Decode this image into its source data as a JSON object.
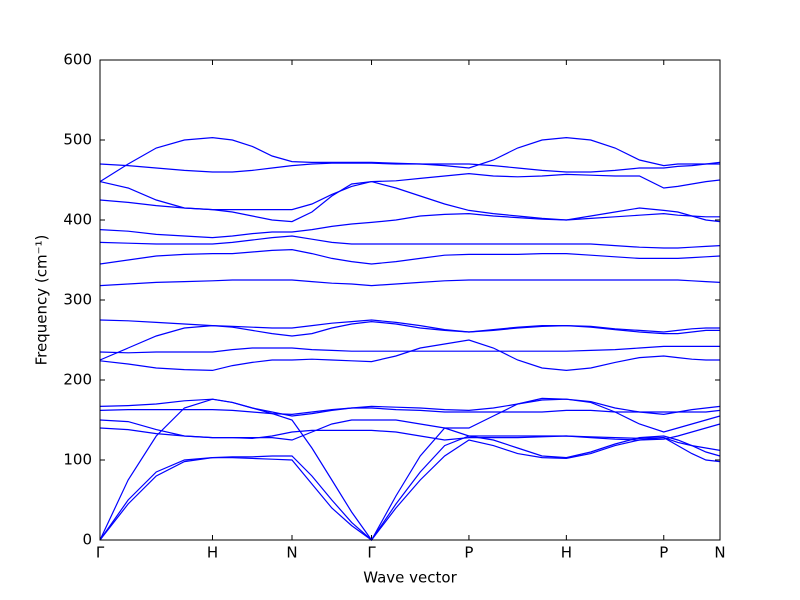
{
  "chart_data": {
    "type": "line",
    "xlabel": "Wave vector",
    "ylabel": "Frequency (cm⁻¹)",
    "x": [
      0,
      0.25,
      0.5,
      0.75,
      1,
      1.177,
      1.354,
      1.53,
      1.707,
      1.884,
      2.061,
      2.237,
      2.414,
      2.631,
      2.847,
      3.064,
      3.28,
      3.497,
      3.713,
      3.93,
      4.146,
      4.363,
      4.579,
      4.796,
      5.012,
      5.137,
      5.262,
      5.387,
      5.512
    ],
    "xlim": [
      0,
      5.512
    ],
    "xticks": [
      {
        "value": 0,
        "label": "Γ"
      },
      {
        "value": 1,
        "label": "H"
      },
      {
        "value": 1.707,
        "label": "N"
      },
      {
        "value": 2.414,
        "label": "Γ"
      },
      {
        "value": 3.28,
        "label": "P"
      },
      {
        "value": 4.146,
        "label": "H"
      },
      {
        "value": 5.012,
        "label": "P"
      },
      {
        "value": 5.512,
        "label": "N"
      }
    ],
    "ylim": [
      0,
      600
    ],
    "yticks": [
      0,
      100,
      200,
      300,
      400,
      500,
      600
    ],
    "grid": false,
    "color": "#0000ff",
    "series": [
      {
        "values": [
          0,
          45,
          80,
          98,
          103,
          103,
          102,
          101,
          100,
          70,
          40,
          18,
          0,
          40,
          75,
          105,
          125,
          118,
          108,
          103,
          102,
          108,
          118,
          125,
          128,
          118,
          108,
          100,
          98
        ]
      },
      {
        "values": [
          0,
          50,
          85,
          100,
          103,
          104,
          104,
          105,
          105,
          80,
          50,
          22,
          0,
          45,
          85,
          118,
          130,
          125,
          115,
          105,
          103,
          110,
          120,
          128,
          130,
          125,
          118,
          110,
          105
        ]
      },
      {
        "values": [
          0,
          75,
          130,
          165,
          176,
          172,
          165,
          158,
          150,
          115,
          75,
          35,
          0,
          55,
          105,
          140,
          140,
          155,
          170,
          177,
          176,
          172,
          160,
          145,
          135,
          140,
          145,
          150,
          155
        ]
      },
      {
        "values": [
          140,
          138,
          133,
          130,
          128,
          128,
          127,
          130,
          135,
          137,
          137,
          137,
          137,
          135,
          130,
          125,
          128,
          128,
          128,
          129,
          130,
          129,
          128,
          127,
          128,
          122,
          118,
          115,
          112
        ]
      },
      {
        "values": [
          150,
          148,
          138,
          130,
          128,
          128,
          128,
          128,
          125,
          135,
          145,
          150,
          150,
          150,
          145,
          140,
          130,
          130,
          130,
          130,
          130,
          128,
          126,
          125,
          126,
          130,
          135,
          140,
          145
        ]
      },
      {
        "values": [
          162,
          163,
          163,
          163,
          163,
          162,
          160,
          158,
          157,
          160,
          163,
          165,
          165,
          163,
          162,
          160,
          160,
          160,
          160,
          160,
          162,
          162,
          160,
          160,
          160,
          160,
          160,
          160,
          162
        ]
      },
      {
        "values": [
          167,
          168,
          170,
          174,
          176,
          172,
          165,
          160,
          155,
          158,
          162,
          165,
          167,
          166,
          165,
          163,
          162,
          165,
          170,
          175,
          176,
          173,
          165,
          160,
          157,
          160,
          163,
          165,
          167
        ]
      },
      {
        "values": [
          224,
          220,
          215,
          213,
          212,
          218,
          222,
          225,
          225,
          226,
          225,
          224,
          223,
          230,
          240,
          245,
          250,
          240,
          225,
          215,
          212,
          215,
          222,
          228,
          230,
          228,
          226,
          225,
          225
        ]
      },
      {
        "values": [
          235,
          234,
          235,
          235,
          235,
          238,
          240,
          240,
          240,
          238,
          237,
          236,
          236,
          236,
          236,
          236,
          236,
          236,
          236,
          236,
          236,
          237,
          238,
          240,
          242,
          242,
          242,
          242,
          242
        ]
      },
      {
        "values": [
          225,
          240,
          255,
          265,
          268,
          266,
          262,
          258,
          255,
          258,
          265,
          270,
          273,
          270,
          265,
          262,
          260,
          263,
          266,
          268,
          268,
          266,
          263,
          260,
          258,
          258,
          260,
          262,
          262
        ]
      },
      {
        "values": [
          275,
          274,
          272,
          270,
          268,
          267,
          266,
          265,
          265,
          268,
          271,
          273,
          275,
          272,
          268,
          263,
          260,
          262,
          265,
          267,
          268,
          267,
          264,
          262,
          260,
          262,
          264,
          265,
          265
        ]
      },
      {
        "values": [
          318,
          320,
          322,
          323,
          324,
          325,
          325,
          325,
          325,
          323,
          321,
          320,
          318,
          320,
          322,
          324,
          325,
          325,
          325,
          325,
          325,
          325,
          325,
          325,
          325,
          325,
          324,
          323,
          322
        ]
      },
      {
        "values": [
          345,
          350,
          355,
          357,
          358,
          358,
          360,
          362,
          363,
          358,
          352,
          348,
          345,
          348,
          352,
          356,
          357,
          357,
          357,
          358,
          358,
          356,
          354,
          352,
          352,
          352,
          353,
          354,
          355
        ]
      },
      {
        "values": [
          372,
          371,
          370,
          370,
          370,
          372,
          375,
          378,
          380,
          376,
          372,
          370,
          370,
          370,
          370,
          370,
          370,
          370,
          370,
          370,
          370,
          370,
          368,
          366,
          365,
          365,
          366,
          367,
          368
        ]
      },
      {
        "values": [
          388,
          386,
          382,
          380,
          378,
          380,
          383,
          385,
          385,
          388,
          392,
          395,
          397,
          400,
          405,
          407,
          408,
          405,
          403,
          401,
          400,
          402,
          404,
          406,
          408,
          406,
          405,
          404,
          404
        ]
      },
      {
        "values": [
          425,
          422,
          418,
          415,
          413,
          410,
          405,
          400,
          398,
          410,
          430,
          445,
          448,
          440,
          430,
          420,
          412,
          408,
          405,
          402,
          400,
          405,
          410,
          415,
          412,
          410,
          405,
          400,
          398
        ]
      },
      {
        "values": [
          448,
          440,
          425,
          415,
          413,
          413,
          413,
          413,
          413,
          420,
          432,
          442,
          448,
          449,
          452,
          455,
          458,
          455,
          454,
          455,
          457,
          456,
          455,
          455,
          440,
          442,
          445,
          448,
          450
        ]
      },
      {
        "values": [
          448,
          470,
          490,
          500,
          503,
          500,
          492,
          480,
          473,
          472,
          472,
          472,
          472,
          471,
          470,
          468,
          465,
          475,
          490,
          500,
          503,
          500,
          490,
          475,
          468,
          470,
          470,
          470,
          470
        ]
      },
      {
        "values": [
          470,
          468,
          465,
          462,
          460,
          460,
          462,
          465,
          468,
          470,
          471,
          471,
          471,
          470,
          470,
          470,
          470,
          468,
          465,
          462,
          460,
          460,
          462,
          465,
          465,
          467,
          468,
          470,
          472
        ]
      }
    ]
  }
}
